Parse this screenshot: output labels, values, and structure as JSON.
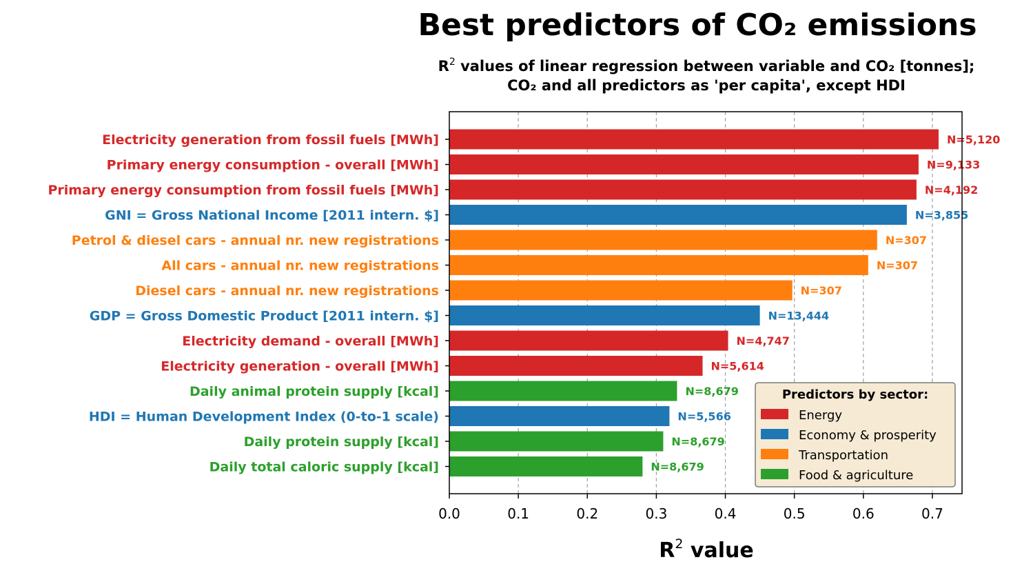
{
  "chart_data": {
    "type": "bar",
    "orientation": "horizontal",
    "title": "Best predictors of CO₂ emissions",
    "subtitle_line1_prefix": "R",
    "subtitle_line1_sup": "2",
    "subtitle_line1_rest": " values of linear regression between variable and CO₂ [tonnes];",
    "subtitle_line2": "CO₂ and all predictors as 'per capita', except HDI",
    "xlabel_prefix": "R",
    "xlabel_sup": "2",
    "xlabel_rest": " value",
    "xlim": [
      0,
      0.743
    ],
    "x_ticks": [
      "0.0",
      "0.1",
      "0.2",
      "0.3",
      "0.4",
      "0.5",
      "0.6",
      "0.7"
    ],
    "x_tick_values": [
      0.0,
      0.1,
      0.2,
      0.3,
      0.4,
      0.5,
      0.6,
      0.7
    ],
    "grid": "vertical dashed",
    "colors": {
      "Energy": "#d62728",
      "Economy & prosperity": "#1f77b4",
      "Transportation": "#ff7f0e",
      "Food & agriculture": "#2ca02c"
    },
    "bars": [
      {
        "label": "Electricity generation from fossil fuels [MWh]",
        "value": 0.709,
        "n": "N=5,120",
        "sector": "Energy"
      },
      {
        "label": "Primary energy consumption - overall [MWh]",
        "value": 0.68,
        "n": "N=9,133",
        "sector": "Energy"
      },
      {
        "label": "Primary energy consumption from fossil fuels [MWh]",
        "value": 0.677,
        "n": "N=4,192",
        "sector": "Energy"
      },
      {
        "label": "GNI = Gross National Income [2011 intern. $]",
        "value": 0.663,
        "n": "N=3,855",
        "sector": "Economy & prosperity"
      },
      {
        "label": "Petrol & diesel cars - annual nr. new registrations",
        "value": 0.62,
        "n": "N=307",
        "sector": "Transportation"
      },
      {
        "label": "All cars - annual nr. new registrations",
        "value": 0.607,
        "n": "N=307",
        "sector": "Transportation"
      },
      {
        "label": "Diesel cars - annual nr. new registrations",
        "value": 0.497,
        "n": "N=307",
        "sector": "Transportation"
      },
      {
        "label": "GDP = Gross Domestic Product [2011 intern. $]",
        "value": 0.45,
        "n": "N=13,444",
        "sector": "Economy & prosperity"
      },
      {
        "label": "Electricity demand - overall [MWh]",
        "value": 0.404,
        "n": "N=4,747",
        "sector": "Energy"
      },
      {
        "label": "Electricity generation - overall [MWh]",
        "value": 0.367,
        "n": "N=5,614",
        "sector": "Energy"
      },
      {
        "label": "Daily animal protein supply [kcal]",
        "value": 0.33,
        "n": "N=8,679",
        "sector": "Food & agriculture"
      },
      {
        "label": "HDI = Human Development Index (0-to-1 scale)",
        "value": 0.319,
        "n": "N=5,566",
        "sector": "Economy & prosperity"
      },
      {
        "label": "Daily protein supply [kcal]",
        "value": 0.31,
        "n": "N=8,679",
        "sector": "Food & agriculture"
      },
      {
        "label": "Daily total caloric supply [kcal]",
        "value": 0.28,
        "n": "N=8,679",
        "sector": "Food & agriculture"
      }
    ],
    "legend": {
      "title": "Predictors by sector:",
      "placement": "lower-right",
      "entries": [
        "Energy",
        "Economy & prosperity",
        "Transportation",
        "Food & agriculture"
      ]
    }
  }
}
